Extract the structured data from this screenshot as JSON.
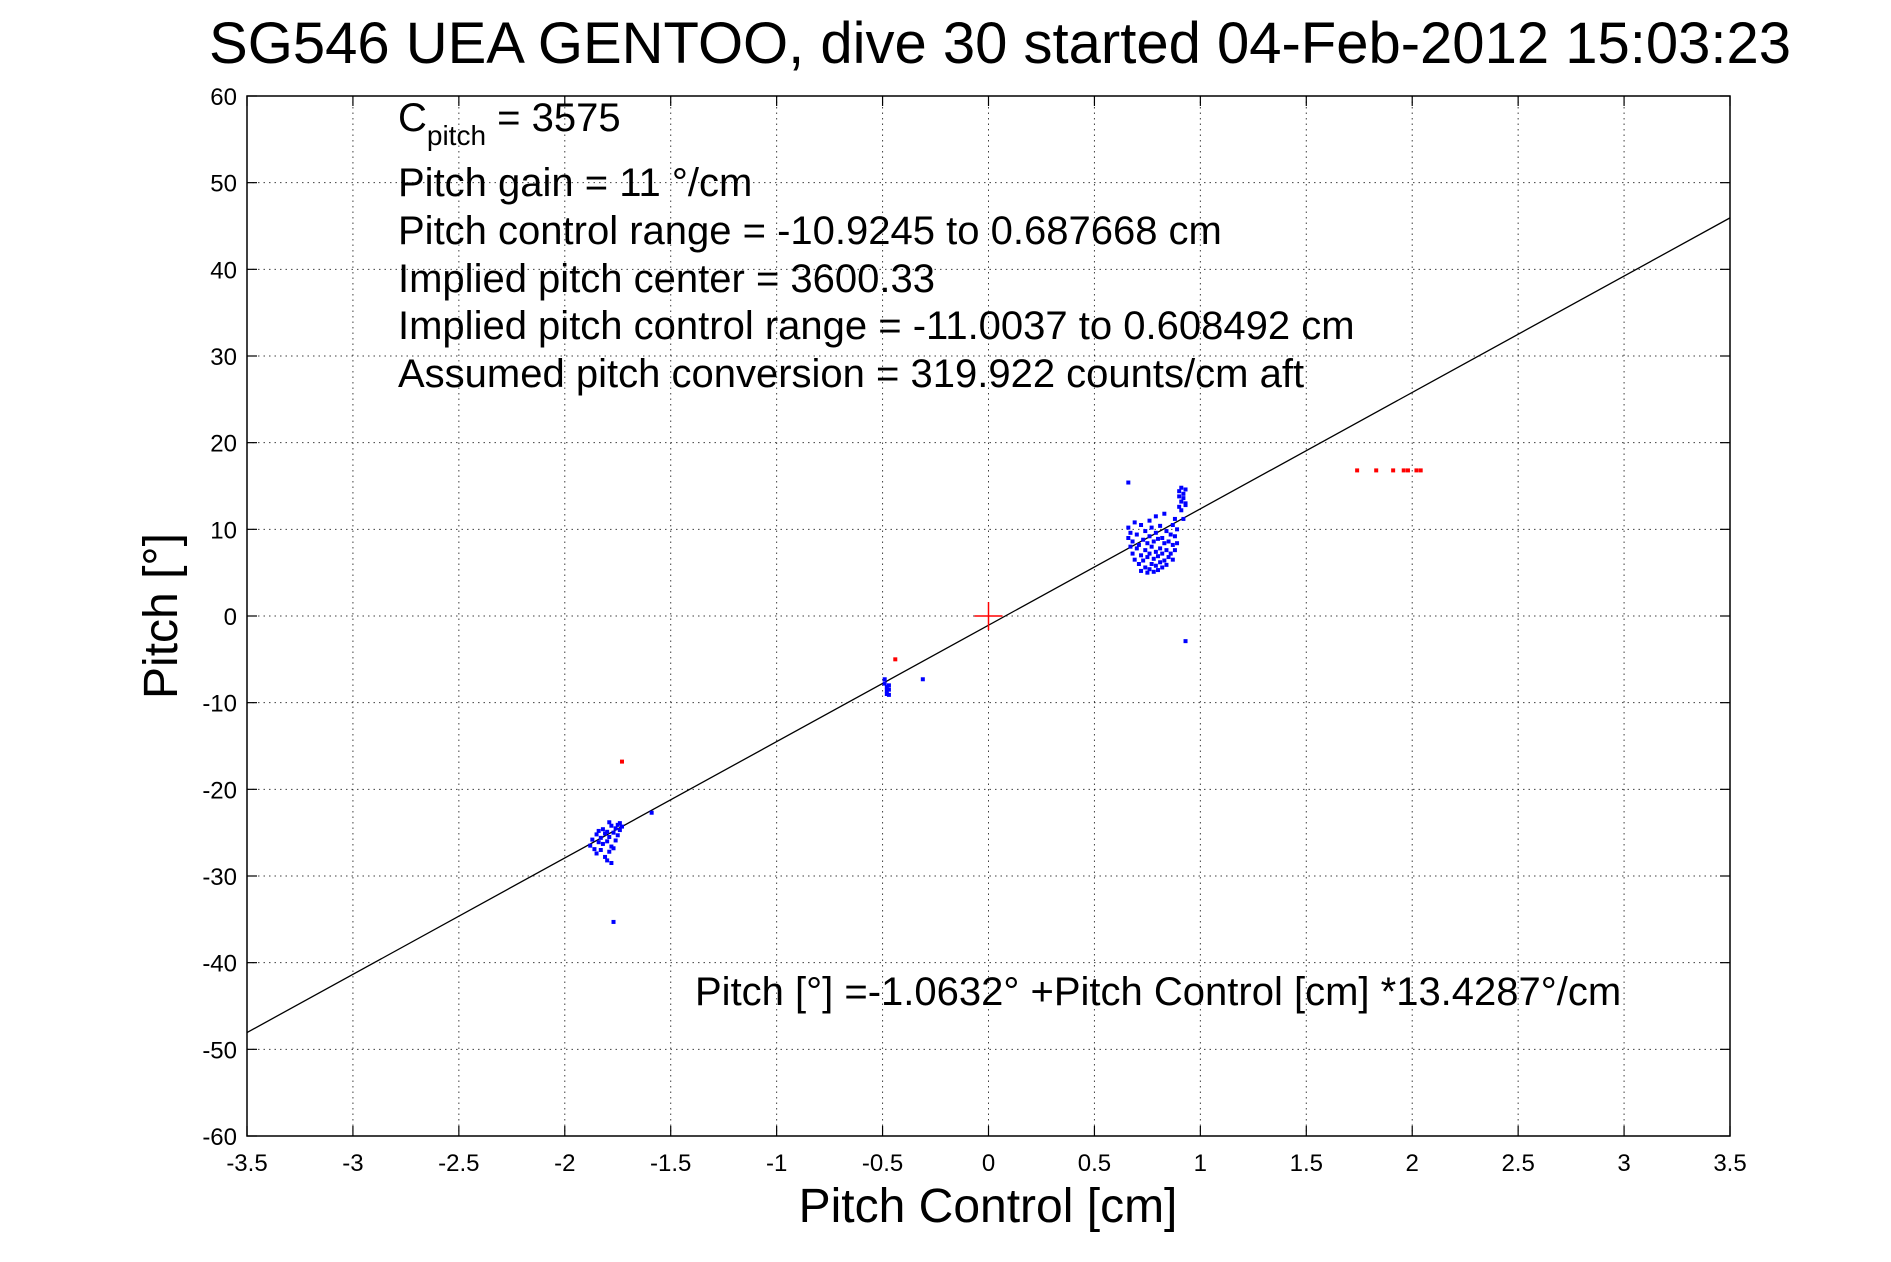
{
  "chart_data": {
    "type": "scatter",
    "title": "SG546 UEA GENTOO, dive 30 started 04-Feb-2012 15:03:23",
    "xlabel": "Pitch Control [cm]",
    "ylabel": "Pitch [°]",
    "xlim": [
      -3.5,
      3.5
    ],
    "ylim": [
      -60,
      60
    ],
    "xticks": [
      -3.5,
      -3,
      -2.5,
      -2,
      -1.5,
      -1,
      -0.5,
      0,
      0.5,
      1,
      1.5,
      2,
      2.5,
      3,
      3.5
    ],
    "yticks": [
      -60,
      -50,
      -40,
      -30,
      -20,
      -10,
      0,
      10,
      20,
      30,
      40,
      50,
      60
    ],
    "grid": true,
    "colors": {
      "good": "#0000ff",
      "rejected": "#ff0000",
      "fit": "#000000",
      "center": "#ff0000"
    },
    "annotations": {
      "c_pitch_main": "C",
      "c_pitch_sub": "pitch",
      "c_pitch_value": " = 3575",
      "pitch_gain": "Pitch gain = 11 °/cm",
      "control_range": "Pitch control range = -10.9245 to 0.687668 cm",
      "implied_center": "Implied pitch center = 3600.33",
      "implied_range": "Implied pitch control range = -11.0037 to 0.608492 cm",
      "conversion": "Assumed pitch conversion = 319.922 counts/cm aft",
      "fit_equation": "Pitch [°] =-1.0632° +Pitch Control [cm] *13.4287°/cm"
    },
    "fit_line": {
      "intercept": -1.0632,
      "slope": 13.4287
    },
    "center_marker": {
      "x": 0,
      "y": 0
    },
    "series": [
      {
        "color": "#0000ff",
        "points": [
          [
            -1.88,
            -26.5
          ],
          [
            -1.87,
            -25.8
          ],
          [
            -1.86,
            -26.9
          ],
          [
            -1.85,
            -25.2
          ],
          [
            -1.85,
            -27.4
          ],
          [
            -1.84,
            -26.1
          ],
          [
            -1.84,
            -24.8
          ],
          [
            -1.83,
            -25.6
          ],
          [
            -1.83,
            -27.0
          ],
          [
            -1.82,
            -24.6
          ],
          [
            -1.82,
            -26.3
          ],
          [
            -1.81,
            -25.1
          ],
          [
            -1.81,
            -27.8
          ],
          [
            -1.8,
            -24.9
          ],
          [
            -1.8,
            -26.0
          ],
          [
            -1.8,
            -28.2
          ],
          [
            -1.79,
            -23.8
          ],
          [
            -1.79,
            -25.5
          ],
          [
            -1.79,
            -27.2
          ],
          [
            -1.78,
            -24.2
          ],
          [
            -1.78,
            -26.6
          ],
          [
            -1.78,
            -28.5
          ],
          [
            -1.77,
            -25.0
          ],
          [
            -1.77,
            -26.8
          ],
          [
            -1.76,
            -24.5
          ],
          [
            -1.76,
            -25.9
          ],
          [
            -1.75,
            -24.1
          ],
          [
            -1.75,
            -25.3
          ],
          [
            -1.74,
            -23.9
          ],
          [
            -1.74,
            -24.7
          ],
          [
            -1.73,
            -24.3
          ],
          [
            -1.59,
            -22.7
          ],
          [
            -1.77,
            -35.3
          ],
          [
            -0.49,
            -7.3
          ],
          [
            -0.49,
            -7.8
          ],
          [
            -0.48,
            -8.2
          ],
          [
            -0.48,
            -8.6
          ],
          [
            -0.48,
            -9.0
          ],
          [
            -0.47,
            -8.0
          ],
          [
            -0.47,
            -8.5
          ],
          [
            -0.47,
            -9.1
          ],
          [
            -0.31,
            -7.3
          ],
          [
            0.66,
            15.4
          ],
          [
            0.66,
            10.2
          ],
          [
            0.66,
            9.0
          ],
          [
            0.67,
            8.0
          ],
          [
            0.67,
            9.6
          ],
          [
            0.68,
            7.2
          ],
          [
            0.68,
            8.6
          ],
          [
            0.69,
            10.8
          ],
          [
            0.69,
            6.5
          ],
          [
            0.7,
            7.8
          ],
          [
            0.7,
            9.4
          ],
          [
            0.71,
            6.0
          ],
          [
            0.71,
            8.2
          ],
          [
            0.72,
            5.2
          ],
          [
            0.72,
            7.0
          ],
          [
            0.72,
            10.5
          ],
          [
            0.73,
            6.4
          ],
          [
            0.73,
            8.8
          ],
          [
            0.74,
            5.6
          ],
          [
            0.74,
            7.6
          ],
          [
            0.74,
            9.8
          ],
          [
            0.75,
            5.0
          ],
          [
            0.75,
            6.8
          ],
          [
            0.75,
            8.4
          ],
          [
            0.76,
            5.4
          ],
          [
            0.76,
            7.2
          ],
          [
            0.76,
            9.2
          ],
          [
            0.76,
            11.0
          ],
          [
            0.77,
            6.0
          ],
          [
            0.77,
            8.0
          ],
          [
            0.77,
            10.2
          ],
          [
            0.78,
            5.1
          ],
          [
            0.78,
            6.6
          ],
          [
            0.78,
            8.6
          ],
          [
            0.79,
            5.8
          ],
          [
            0.79,
            7.4
          ],
          [
            0.79,
            9.6
          ],
          [
            0.79,
            11.5
          ],
          [
            0.8,
            5.3
          ],
          [
            0.8,
            6.9
          ],
          [
            0.8,
            8.9
          ],
          [
            0.81,
            6.2
          ],
          [
            0.81,
            7.8
          ],
          [
            0.81,
            10.4
          ],
          [
            0.82,
            5.6
          ],
          [
            0.82,
            7.2
          ],
          [
            0.82,
            9.0
          ],
          [
            0.83,
            6.4
          ],
          [
            0.83,
            8.4
          ],
          [
            0.83,
            11.8
          ],
          [
            0.84,
            5.9
          ],
          [
            0.84,
            7.6
          ],
          [
            0.84,
            9.8
          ],
          [
            0.85,
            6.8
          ],
          [
            0.85,
            8.6
          ],
          [
            0.86,
            7.2
          ],
          [
            0.86,
            9.4
          ],
          [
            0.87,
            6.5
          ],
          [
            0.87,
            8.2
          ],
          [
            0.87,
            10.5
          ],
          [
            0.88,
            7.6
          ],
          [
            0.88,
            9.2
          ],
          [
            0.88,
            11.2
          ],
          [
            0.89,
            8.4
          ],
          [
            0.89,
            10.0
          ],
          [
            0.9,
            13.8
          ],
          [
            0.9,
            14.4
          ],
          [
            0.9,
            12.6
          ],
          [
            0.91,
            13.2
          ],
          [
            0.91,
            14.8
          ],
          [
            0.91,
            12.2
          ],
          [
            0.92,
            13.6
          ],
          [
            0.92,
            14.1
          ],
          [
            0.93,
            12.8
          ],
          [
            0.93,
            14.6
          ],
          [
            0.93,
            13.0
          ],
          [
            0.92,
            11.2
          ],
          [
            0.93,
            -2.9
          ]
        ]
      },
      {
        "color": "#ff0000",
        "points": [
          [
            -1.73,
            -16.8
          ],
          [
            -0.44,
            -5.0
          ],
          [
            1.74,
            16.8
          ],
          [
            1.83,
            16.8
          ],
          [
            1.91,
            16.8
          ],
          [
            1.96,
            16.8
          ],
          [
            1.98,
            16.8
          ],
          [
            2.02,
            16.8
          ],
          [
            2.04,
            16.8
          ]
        ]
      }
    ]
  }
}
